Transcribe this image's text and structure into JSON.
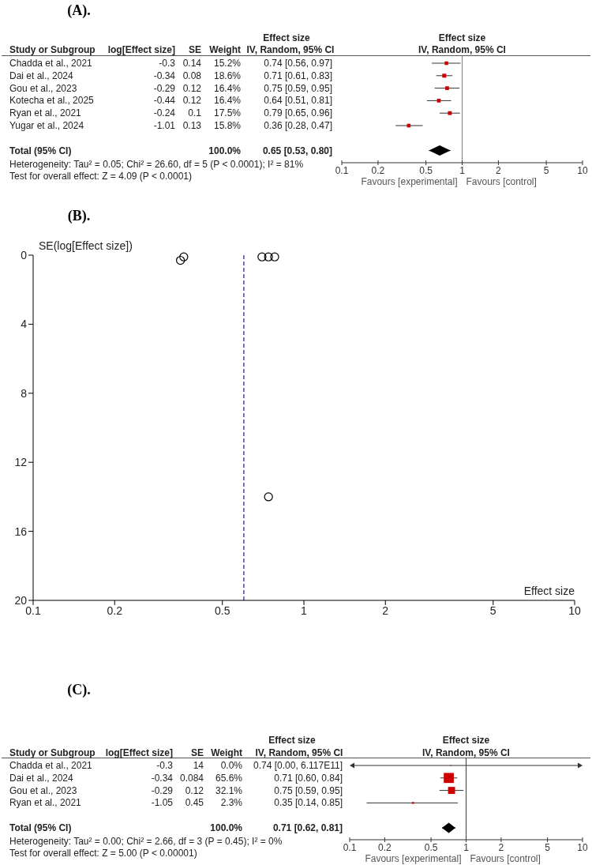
{
  "chart_data": [
    {
      "type": "other",
      "title": "(A).",
      "categories": [
        "Chadda et al., 2021",
        "Dai et al., 2024",
        "Gou et al., 2023",
        "Kotecha et al., 2025",
        "Ryan et al., 2021",
        "Yugar et al., 2024",
        null,
        "Total (95% CI)"
      ],
      "series": [
        {
          "name": "log[Effect size]",
          "values": [
            -0.3,
            -0.34,
            -0.29,
            -0.44,
            -0.24,
            -1.01,
            null,
            null
          ],
          "value_labels": [
            "-0.3",
            "-0.34",
            "-0.29",
            "-0.44",
            "-0.24",
            "-1.01",
            null,
            null
          ]
        },
        {
          "name": "SE",
          "values": [
            0.14,
            0.08,
            0.12,
            0.12,
            0.1,
            0.13,
            null,
            null
          ],
          "value_labels": [
            "0.14",
            "0.08",
            "0.12",
            "0.12",
            "0.1",
            "0.13",
            null,
            null
          ]
        },
        {
          "name": "Weight",
          "values": [
            15.2,
            18.6,
            16.4,
            16.4,
            17.5,
            15.8,
            null,
            100.0
          ],
          "value_labels": [
            "15.2%",
            "18.6%",
            "16.4%",
            "16.4%",
            "17.5%",
            "15.8%",
            null,
            "100.0%"
          ]
        },
        {
          "values": [
            0.74,
            0.71,
            0.75,
            0.64,
            0.79,
            0.36,
            null,
            0.65
          ],
          "value_labels": [
            "0.74 [0.56, 0.97]",
            "0.71 [0.61, 0.83]",
            "0.75 [0.59, 0.95]",
            "0.64 [0.51, 0.81]",
            "0.79 [0.65, 0.96]",
            "0.36 [0.28, 0.47]",
            null,
            "0.65 [0.53, 0.80]"
          ]
        }
      ],
      "annotations": [
        "Study or Subgroup",
        "Effect size",
        "IV, Random, 95% CI",
        "Heterogeneity: Tau² = 0.05; Chi² = 26.60, df = 5 (P < 0.0001); I² = 81%",
        "Test for overall effect: Z = 4.09 (P < 0.0001)"
      ]
    },
    {
      "type": "scatter",
      "orientation": "horizontal",
      "categories": [
        null,
        null,
        null,
        null,
        null,
        null,
        null,
        null
      ],
      "log": "x",
      "xlim": [
        0.1,
        10
      ],
      "xticks": [
        0.1,
        0.2,
        0.5,
        1,
        2,
        5,
        10
      ],
      "marker": "square",
      "series": [
        {
          "type": "bubble",
          "color": "#cc0000",
          "values": [
            0.74,
            0.71,
            0.75,
            0.64,
            0.79,
            0.36,
            null,
            null
          ],
          "sizes": [
            0.82,
            1,
            0.88,
            0.88,
            0.94,
            0.85,
            null,
            null
          ],
          "errors": [
            [
              0.56,
              0.97
            ],
            [
              0.61,
              0.83
            ],
            [
              0.59,
              0.95
            ],
            [
              0.51,
              0.81
            ],
            [
              0.65,
              0.96
            ],
            [
              0.28,
              0.47
            ],
            null,
            null
          ]
        },
        {
          "type": "scatter",
          "marker": "diamond",
          "color": "#000000",
          "values": [
            null,
            null,
            null,
            null,
            null,
            null,
            null,
            0.65
          ],
          "errors": [
            null,
            null,
            null,
            null,
            null,
            null,
            null,
            [
              0.53,
              0.8
            ]
          ]
        }
      ],
      "ref_lines": [
        {
          "axis": "x",
          "value": 1,
          "color": "#808080"
        }
      ],
      "annotations": [
        "Effect size",
        "IV, Random, 95% CI",
        "Favours [experimental]",
        "Favours [control]"
      ]
    },
    {
      "type": "scatter",
      "title": "(B).",
      "x": [
        0.35,
        0.36,
        0.7,
        0.74,
        0.78,
        0.74
      ],
      "values": [
        0.3,
        0.1,
        0.1,
        0.1,
        0.1,
        14
      ],
      "color": "#000000",
      "marker": "circle",
      "log": "x",
      "xlim": [
        0.1,
        10
      ],
      "xticks": [
        0.1,
        0.2,
        0.5,
        1,
        2,
        5,
        10
      ],
      "ylim": [
        20,
        0
      ],
      "yticks": [
        0,
        4,
        8,
        12,
        16,
        20
      ],
      "xlabel": "Effect size",
      "ylabel": "SE(log[Effect size])",
      "ref_lines": [
        {
          "axis": "x",
          "value": 0.6,
          "color": "#2e3192",
          "line_style": "dashed"
        }
      ]
    },
    {
      "type": "other",
      "title": "(C).",
      "categories": [
        "Chadda et al., 2021",
        "Dai et al., 2024",
        "Gou et al., 2023",
        "Ryan et al., 2021",
        null,
        "Total (95% CI)"
      ],
      "series": [
        {
          "name": "log[Effect size]",
          "values": [
            -0.3,
            -0.34,
            -0.29,
            -1.05,
            null,
            null
          ],
          "value_labels": [
            "-0.3",
            "-0.34",
            "-0.29",
            "-1.05",
            null,
            null
          ]
        },
        {
          "name": "SE",
          "values": [
            14,
            0.084,
            0.12,
            0.45,
            null,
            null
          ],
          "value_labels": [
            "14",
            "0.084",
            "0.12",
            "0.45",
            null,
            null
          ]
        },
        {
          "name": "Weight",
          "values": [
            0.0,
            65.6,
            32.1,
            2.3,
            null,
            100.0
          ],
          "value_labels": [
            "0.0%",
            "65.6%",
            "32.1%",
            "2.3%",
            null,
            "100.0%"
          ]
        },
        {
          "values": [
            0.74,
            0.71,
            0.75,
            0.35,
            null,
            0.71
          ],
          "value_labels": [
            "0.74 [0.00, 6.117E11]",
            "0.71 [0.60, 0.84]",
            "0.75 [0.59, 0.95]",
            "0.35 [0.14, 0.85]",
            null,
            "0.71 [0.62, 0.81]"
          ]
        }
      ],
      "annotations": [
        "Study or Subgroup",
        "Effect size",
        "IV, Random, 95% CI",
        "Heterogeneity: Tau² = 0.00; Chi² = 2.66, df = 3 (P = 0.45); I² = 0%",
        "Test for overall effect: Z = 5.00 (P < 0.00001)"
      ]
    },
    {
      "type": "scatter",
      "orientation": "horizontal",
      "categories": [
        null,
        null,
        null,
        null,
        null,
        null
      ],
      "log": "x",
      "xlim": [
        0.1,
        10
      ],
      "xticks": [
        0.1,
        0.2,
        0.5,
        1,
        2,
        5,
        10
      ],
      "marker": "square",
      "series": [
        {
          "type": "bubble",
          "color": "#cc0000",
          "values": [
            0.74,
            0.71,
            0.75,
            0.35,
            null,
            null
          ],
          "sizes": [
            0.01,
            1,
            0.49,
            0.035,
            null,
            null
          ],
          "errors": [
            [
              null,
              null
            ],
            [
              0.6,
              0.84
            ],
            [
              0.59,
              0.95
            ],
            [
              0.14,
              0.85
            ],
            null,
            null
          ]
        },
        {
          "type": "scatter",
          "marker": "diamond",
          "color": "#000000",
          "values": [
            null,
            null,
            null,
            null,
            null,
            0.71
          ],
          "errors": [
            null,
            null,
            null,
            null,
            null,
            [
              0.62,
              0.81
            ]
          ]
        }
      ],
      "ref_lines": [
        {
          "axis": "x",
          "value": 1,
          "color": "#404040"
        }
      ],
      "annotations": [
        "Effect size",
        "IV, Random, 95% CI",
        "Favours [experimental]",
        "Favours [control]"
      ]
    }
  ]
}
